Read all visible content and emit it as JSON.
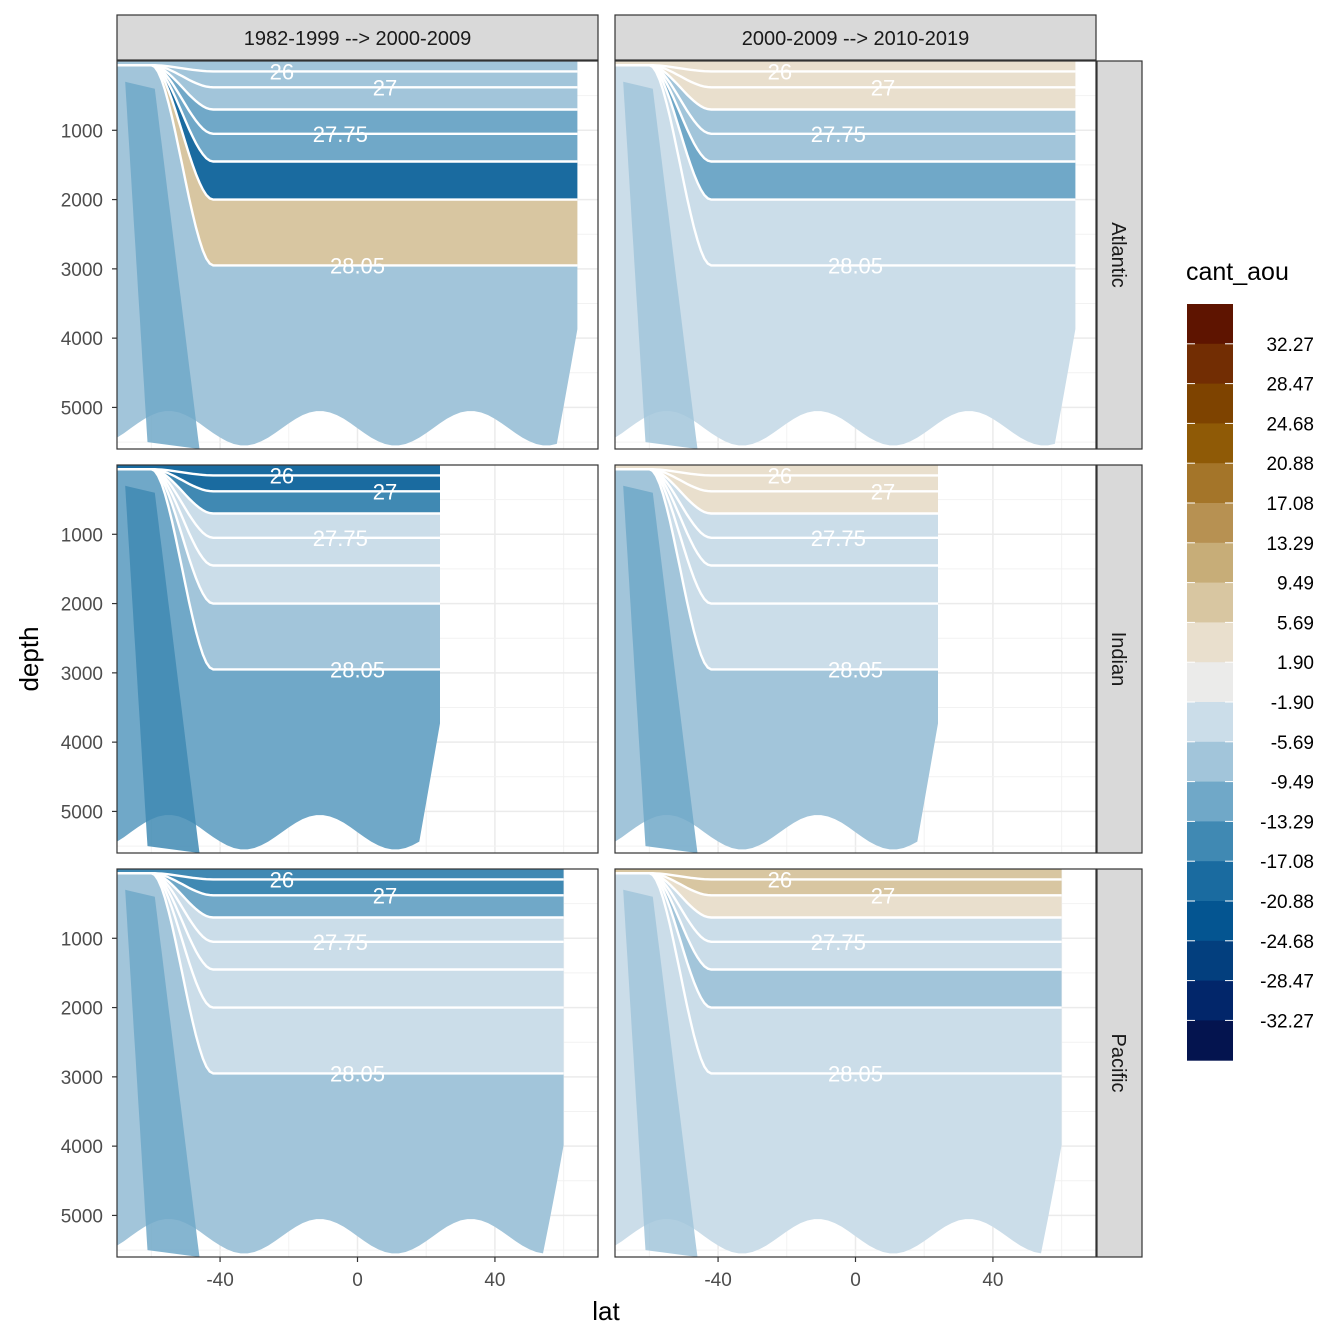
{
  "chart_data": {
    "type": "contour",
    "facet_cols": [
      "1982-1999 --> 2000-2009",
      "2000-2009 --> 2010-2019"
    ],
    "facet_rows": [
      "Atlantic",
      "Indian",
      "Pacific"
    ],
    "xlabel": "lat",
    "ylabel": "depth",
    "xlim": [
      -70,
      70
    ],
    "ylim": [
      5600,
      0
    ],
    "x_ticks": [
      "-40",
      "0",
      "40"
    ],
    "x_tick_values": [
      -40,
      0,
      40
    ],
    "y_ticks": [
      "1000",
      "2000",
      "3000",
      "4000",
      "5000"
    ],
    "y_tick_values": [
      1000,
      2000,
      3000,
      4000,
      5000
    ],
    "legend": {
      "title": "cant_aou",
      "labels": [
        "32.27",
        "28.47",
        "24.68",
        "20.88",
        "17.08",
        "13.29",
        "9.49",
        "5.69",
        "1.90",
        "-1.90",
        "-5.69",
        "-9.49",
        "-13.29",
        "-17.08",
        "-20.88",
        "-24.68",
        "-28.47",
        "-32.27"
      ],
      "colors": [
        "#5e1400",
        "#722d03",
        "#7e4300",
        "#8f5a06",
        "#a47529",
        "#b79152",
        "#c7ad78",
        "#d8c6a1",
        "#e9dfcd",
        "#ebebea",
        "#cbdde9",
        "#a2c5da",
        "#70a8c8",
        "#4089b3",
        "#1a6ba0",
        "#045591",
        "#033f7e",
        "#02266a",
        "#04144f"
      ]
    },
    "isopycnal_labels": {
      "Atlantic": [
        "26",
        "27",
        "27.75",
        "28.05"
      ],
      "Indian": [
        "26",
        "27",
        "27.75",
        "28.05"
      ],
      "Pacific": [
        "26",
        "27",
        "27.75",
        "28.05"
      ]
    },
    "panels": [
      {
        "row": "Atlantic",
        "col": 0,
        "surface": -8,
        "deep": -12,
        "wide_low": -20,
        "deep_north": 6,
        "abyssal": -6
      },
      {
        "row": "Atlantic",
        "col": 1,
        "surface": 4,
        "deep": -8,
        "wide_low": -12,
        "deep_north": -3,
        "abyssal": -2
      },
      {
        "row": "Indian",
        "col": 0,
        "surface": -18,
        "deep": -2,
        "wide_low": -2,
        "deep_north": -6,
        "abyssal": -10
      },
      {
        "row": "Indian",
        "col": 1,
        "surface": 4,
        "deep": -4,
        "wide_low": -4,
        "deep_north": -2,
        "abyssal": -6
      },
      {
        "row": "Pacific",
        "col": 0,
        "surface": -16,
        "deep": -2,
        "wide_low": -2,
        "deep_north": -2,
        "abyssal": -6
      },
      {
        "row": "Pacific",
        "col": 1,
        "surface": 6,
        "deep": -3,
        "wide_low": -6,
        "deep_north": -3,
        "abyssal": -4
      }
    ]
  }
}
